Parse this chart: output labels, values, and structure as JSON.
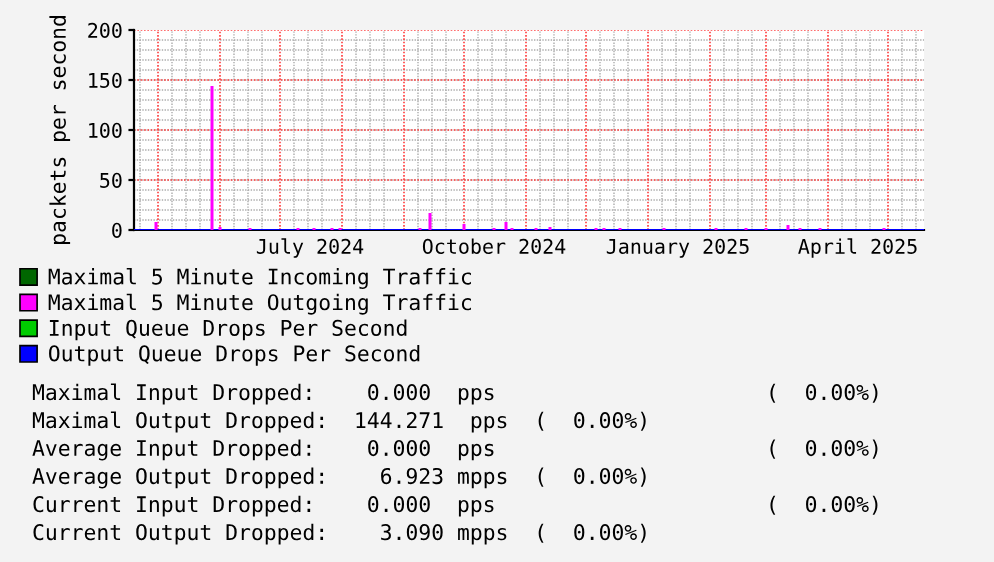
{
  "chart_data": {
    "type": "bar",
    "ylabel": "packets per second",
    "xlim": [
      "2024-04-19",
      "2025-05-19"
    ],
    "ylim": [
      0,
      200
    ],
    "yticks": [
      0,
      50,
      100,
      150,
      200
    ],
    "xticks": [
      {
        "value": "2024-07-16",
        "label": "July 2024"
      },
      {
        "value": "2024-10-16",
        "label": "October 2024"
      },
      {
        "value": "2025-01-16",
        "label": "January 2025"
      },
      {
        "value": "2025-04-16",
        "label": "April 2025"
      }
    ],
    "grid": true,
    "legend": "bottom",
    "series": [
      {
        "name": "Maximal 5 Minute Incoming Traffic",
        "color": "#006600",
        "type": "line"
      },
      {
        "name": "Maximal 5 Minute Outgoing Traffic",
        "color": "#ff00ff",
        "x": [
          "2024-04-30",
          "2024-05-28",
          "2024-06-01",
          "2024-06-16",
          "2024-07-10",
          "2024-07-18",
          "2024-07-27",
          "2024-07-31",
          "2024-09-09",
          "2024-09-14",
          "2024-10-01",
          "2024-10-16",
          "2024-10-22",
          "2024-10-25",
          "2024-11-06",
          "2024-11-13",
          "2024-12-06",
          "2024-12-10",
          "2024-12-18",
          "2025-01-09",
          "2025-02-04",
          "2025-02-19",
          "2025-03-01",
          "2025-03-12",
          "2025-03-18",
          "2025-03-28",
          "2025-04-29"
        ],
        "values": [
          8,
          144,
          3,
          2,
          2,
          2,
          2,
          2,
          2,
          17,
          6,
          2,
          8,
          2,
          2,
          3,
          2,
          2,
          2,
          2,
          2,
          2,
          2,
          5,
          2,
          2,
          2
        ]
      },
      {
        "name": "Input Queue Drops Per Second",
        "color": "#00cc00",
        "type": "line"
      },
      {
        "name": "Output Queue Drops Per Second",
        "color": "#0000ff",
        "type": "line",
        "x": [
          "2024-04-19",
          "2025-05-19"
        ],
        "values": [
          0,
          0
        ]
      }
    ],
    "annotations": [
      "Maximal Input Dropped:    0.000  pps                     (  0.00%)",
      "Maximal Output Dropped:  144.271  pps  (  0.00%)",
      "Average Input Dropped:    0.000  pps                     (  0.00%)",
      "Average Output Dropped:    6.923 mpps  (  0.00%)",
      "Current Input Dropped:    0.000  pps                     (  0.00%)",
      "Current Output Dropped:    3.090 mpps  (  0.00%)"
    ]
  }
}
